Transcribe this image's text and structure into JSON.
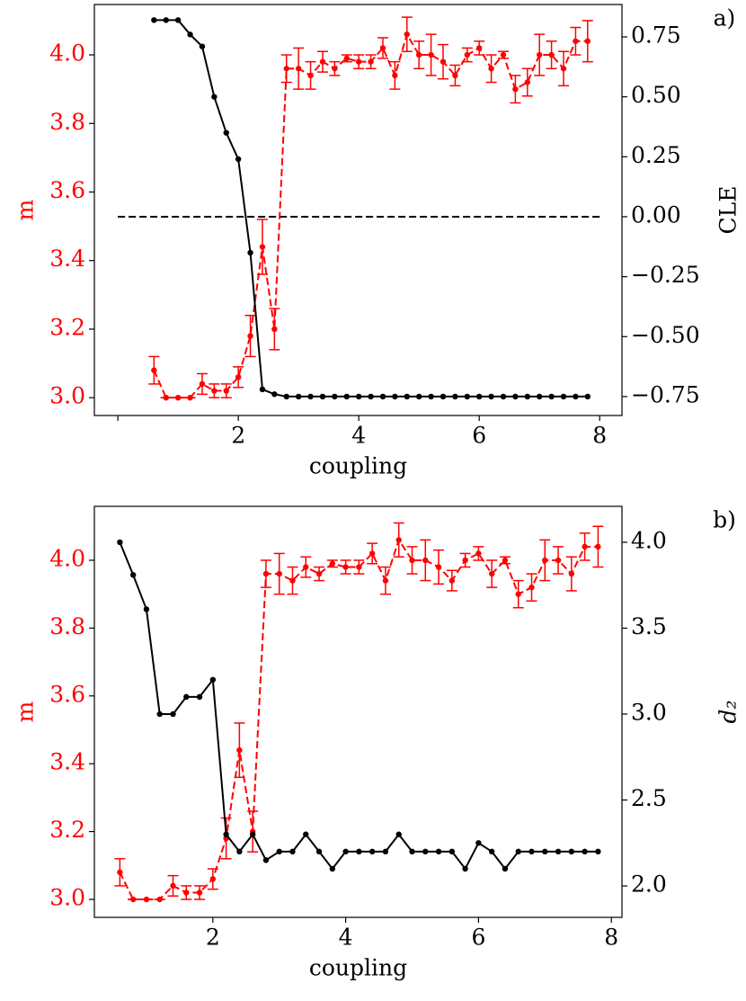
{
  "chart_data": [
    {
      "type": "line",
      "panel_label": "a)",
      "xlabel": "coupling",
      "ylabel": "m",
      "y2label": "CLE",
      "ylabel_color": "#ff0000",
      "x": [
        0.6,
        0.8,
        1.0,
        1.2,
        1.4,
        1.6,
        1.8,
        2.0,
        2.2,
        2.4,
        2.6,
        2.8,
        3.0,
        3.2,
        3.4,
        3.6,
        3.8,
        4.0,
        4.2,
        4.4,
        4.6,
        4.8,
        5.0,
        5.2,
        5.4,
        5.6,
        5.8,
        6.0,
        6.2,
        6.4,
        6.6,
        6.8,
        7.0,
        7.2,
        7.4,
        7.6,
        7.8
      ],
      "series": [
        {
          "name": "m",
          "color": "#ff0000",
          "linestyle": "dashed",
          "axis": "y",
          "values": [
            3.08,
            3.0,
            3.0,
            3.0,
            3.04,
            3.02,
            3.02,
            3.06,
            3.18,
            3.44,
            3.2,
            3.96,
            3.96,
            3.94,
            3.98,
            3.96,
            3.99,
            3.98,
            3.98,
            4.02,
            3.94,
            4.06,
            4.0,
            4.0,
            3.98,
            3.94,
            4.0,
            4.02,
            3.96,
            4.0,
            3.9,
            3.92,
            4.0,
            4.0,
            3.96,
            4.04,
            4.04
          ],
          "errors": [
            0.04,
            0.0,
            0.0,
            0.0,
            0.03,
            0.02,
            0.02,
            0.03,
            0.06,
            0.08,
            0.06,
            0.04,
            0.06,
            0.04,
            0.03,
            0.02,
            0.01,
            0.02,
            0.02,
            0.03,
            0.04,
            0.05,
            0.04,
            0.06,
            0.05,
            0.03,
            0.02,
            0.02,
            0.04,
            0.01,
            0.04,
            0.04,
            0.06,
            0.04,
            0.05,
            0.04,
            0.06
          ]
        },
        {
          "name": "CLE",
          "color": "#000000",
          "linestyle": "solid",
          "axis": "y2",
          "values": [
            0.82,
            0.82,
            0.82,
            0.76,
            0.71,
            0.5,
            0.35,
            0.24,
            -0.15,
            -0.72,
            -0.74,
            -0.75,
            -0.75,
            -0.75,
            -0.75,
            -0.75,
            -0.75,
            -0.75,
            -0.75,
            -0.75,
            -0.75,
            -0.75,
            -0.75,
            -0.75,
            -0.75,
            -0.75,
            -0.75,
            -0.75,
            -0.75,
            -0.75,
            -0.75,
            -0.75,
            -0.75,
            -0.75,
            -0.75,
            -0.75,
            -0.75
          ]
        }
      ],
      "reference_line": {
        "axis": "y2",
        "value": 0,
        "x_range": [
          0,
          8
        ],
        "color": "#000000",
        "linestyle": "dashed"
      },
      "xlim": [
        -0.39,
        8.37
      ],
      "xticks": [
        {
          "value": 0,
          "label": null
        },
        2,
        4,
        6,
        8
      ],
      "ylim": [
        2.948,
        4.147
      ],
      "yticks": [
        {
          "value": 3.0,
          "label": "3.0"
        },
        3.2,
        3.4,
        3.6,
        3.8,
        {
          "value": 4.0,
          "label": "4.0"
        }
      ],
      "y2lim": [
        -0.829,
        0.885
      ],
      "y2ticks": [
        {
          "value": -0.75,
          "label": "−0.75"
        },
        {
          "value": -0.5,
          "label": "−0.50"
        },
        {
          "value": -0.25,
          "label": "−0.25"
        },
        {
          "value": 0,
          "label": "0.00"
        },
        0.25,
        {
          "value": 0.5,
          "label": "0.50"
        },
        0.75
      ]
    },
    {
      "type": "line",
      "panel_label": "b)",
      "xlabel": "coupling",
      "ylabel": "m",
      "y2label": "d₂",
      "ylabel_color": "#ff0000",
      "x": [
        0.6,
        0.8,
        1.0,
        1.2,
        1.4,
        1.6,
        1.8,
        2.0,
        2.2,
        2.4,
        2.6,
        2.8,
        3.0,
        3.2,
        3.4,
        3.6,
        3.8,
        4.0,
        4.2,
        4.4,
        4.6,
        4.8,
        5.0,
        5.2,
        5.4,
        5.6,
        5.8,
        6.0,
        6.2,
        6.4,
        6.6,
        6.8,
        7.0,
        7.2,
        7.4,
        7.6,
        7.8
      ],
      "series": [
        {
          "name": "m",
          "color": "#ff0000",
          "linestyle": "dashed",
          "axis": "y",
          "values": [
            3.08,
            3.0,
            3.0,
            3.0,
            3.04,
            3.02,
            3.02,
            3.06,
            3.18,
            3.44,
            3.2,
            3.96,
            3.96,
            3.94,
            3.98,
            3.96,
            3.99,
            3.98,
            3.98,
            4.02,
            3.94,
            4.06,
            4.0,
            4.0,
            3.98,
            3.94,
            4.0,
            4.02,
            3.96,
            4.0,
            3.9,
            3.92,
            4.0,
            4.0,
            3.96,
            4.04,
            4.04
          ],
          "errors": [
            0.04,
            0.0,
            0.0,
            0.0,
            0.03,
            0.02,
            0.02,
            0.03,
            0.06,
            0.08,
            0.06,
            0.04,
            0.06,
            0.04,
            0.03,
            0.02,
            0.01,
            0.02,
            0.02,
            0.03,
            0.04,
            0.05,
            0.04,
            0.06,
            0.05,
            0.03,
            0.02,
            0.02,
            0.04,
            0.01,
            0.04,
            0.04,
            0.06,
            0.04,
            0.05,
            0.04,
            0.06
          ]
        },
        {
          "name": "d₂",
          "color": "#000000",
          "linestyle": "solid",
          "axis": "y2",
          "values": [
            4.0,
            3.81,
            3.61,
            3.0,
            3.0,
            3.1,
            3.1,
            3.2,
            2.3,
            2.2,
            2.3,
            2.15,
            2.2,
            2.2,
            2.3,
            2.2,
            2.1,
            2.2,
            2.2,
            2.2,
            2.2,
            2.3,
            2.2,
            2.2,
            2.2,
            2.2,
            2.1,
            2.25,
            2.2,
            2.1,
            2.2,
            2.2,
            2.2,
            2.2,
            2.2,
            2.2,
            2.2
          ]
        }
      ],
      "xlim": [
        0.216,
        8.16
      ],
      "xticks": [
        2,
        4,
        6,
        8
      ],
      "ylim": [
        2.947,
        4.159
      ],
      "yticks": [
        {
          "value": 3.0,
          "label": "3.0"
        },
        3.2,
        3.4,
        3.6,
        3.8,
        {
          "value": 4.0,
          "label": "4.0"
        }
      ],
      "y2lim": [
        1.817,
        4.209
      ],
      "y2ticks": [
        {
          "value": 2.0,
          "label": "2.0"
        },
        2.5,
        {
          "value": 3.0,
          "label": "3.0"
        },
        3.5,
        {
          "value": 4.0,
          "label": "4.0"
        }
      ]
    }
  ]
}
